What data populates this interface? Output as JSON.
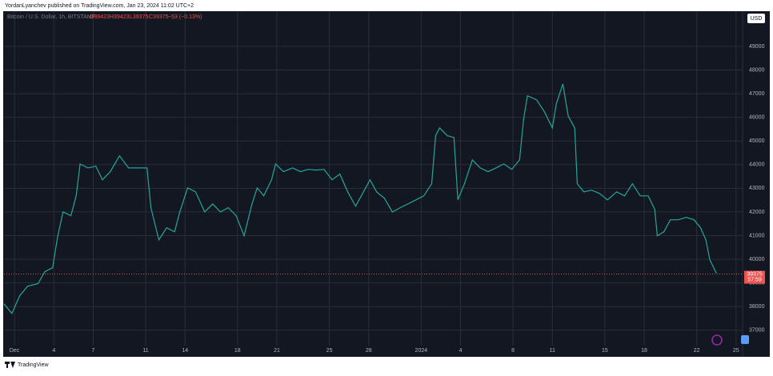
{
  "header": {
    "publisher": "YordanLyanchev published on TradingView.com, Jan 23, 2024 11:02 UTC+2"
  },
  "footer": {
    "brand": "TradingView"
  },
  "chart_data": {
    "type": "line",
    "legend": {
      "symbol": "Bitcoin / U.S. Dollar, 1h, BITSTAMP",
      "open": "O39423",
      "high": "H39423",
      "low": "L39375",
      "close": "C39375",
      "change": "−53 (−0.13%)"
    },
    "currency": "USD",
    "last_price": 39375,
    "countdown": "57:59",
    "color": "#26a69a",
    "last_color": "#ef5350",
    "grid": true,
    "x": [
      -0.8,
      -0.2,
      0.4,
      1.0,
      1.8,
      2.3,
      2.9,
      3.3,
      3.7,
      4.3,
      4.7,
      5.0,
      5.6,
      6.2,
      6.7,
      7.3,
      8.0,
      8.7,
      9.3,
      10.1,
      10.4,
      11.0,
      11.6,
      12.2,
      12.6,
      13.2,
      13.8,
      14.5,
      15.1,
      15.7,
      16.3,
      16.9,
      17.5,
      18.1,
      18.5,
      19.0,
      19.6,
      19.9,
      20.5,
      21.2,
      21.8,
      22.4,
      23.0,
      23.6,
      24.2,
      24.8,
      25.4,
      26.0,
      26.6,
      27.1,
      27.6,
      28.2,
      28.8,
      29.4,
      30.0,
      30.6,
      31.2,
      31.8,
      32.1,
      32.4,
      33.0,
      33.5,
      33.8,
      34.3,
      34.9,
      35.5,
      36.1,
      36.7,
      37.3,
      37.9,
      38.5,
      38.8,
      39.1,
      39.8,
      40.4,
      41.0,
      41.3,
      41.8,
      42.2,
      42.7,
      42.9,
      43.4,
      44.0,
      44.6,
      45.2,
      45.9,
      46.5,
      47.1,
      47.7,
      48.3,
      48.8,
      49.0,
      49.5,
      50.0,
      50.6,
      51.2,
      51.8,
      52.3,
      52.7,
      53.0,
      53.5
    ],
    "values": [
      38120,
      37710,
      38460,
      38860,
      38970,
      39470,
      39640,
      40990,
      42000,
      41840,
      42680,
      44030,
      43860,
      43930,
      43360,
      43700,
      44370,
      43860,
      43860,
      43860,
      42180,
      40820,
      41330,
      41160,
      42000,
      43020,
      42850,
      42000,
      42340,
      42000,
      42180,
      41840,
      40990,
      42340,
      43020,
      42680,
      43360,
      44030,
      43700,
      43860,
      43700,
      43800,
      43770,
      43800,
      43360,
      43600,
      42850,
      42240,
      42850,
      43360,
      42850,
      42580,
      42000,
      42180,
      42340,
      42510,
      42680,
      43190,
      45220,
      45550,
      45220,
      45150,
      42510,
      43190,
      44200,
      43860,
      43700,
      43860,
      44030,
      43800,
      44200,
      45890,
      46910,
      46740,
      46230,
      45550,
      46570,
      47410,
      46060,
      45550,
      43190,
      42850,
      42920,
      42780,
      42510,
      42850,
      42680,
      43190,
      42680,
      42680,
      42110,
      40990,
      41160,
      41670,
      41670,
      41770,
      41670,
      41330,
      40820,
      39980,
      39410
    ],
    "xlim": [
      -0.8,
      55.5
    ],
    "xticks": [
      {
        "value": 0,
        "label": "Dec"
      },
      {
        "value": 3,
        "label": "4"
      },
      {
        "value": 6,
        "label": "7"
      },
      {
        "value": 10,
        "label": "11"
      },
      {
        "value": 13,
        "label": "14"
      },
      {
        "value": 17,
        "label": "18"
      },
      {
        "value": 20,
        "label": "21"
      },
      {
        "value": 24,
        "label": "25"
      },
      {
        "value": 27,
        "label": "28"
      },
      {
        "value": 31,
        "label": "2024"
      },
      {
        "value": 34,
        "label": "4"
      },
      {
        "value": 38,
        "label": "8"
      },
      {
        "value": 41,
        "label": "11"
      },
      {
        "value": 45,
        "label": "15"
      },
      {
        "value": 48,
        "label": "18"
      },
      {
        "value": 52,
        "label": "22"
      },
      {
        "value": 55,
        "label": "25"
      }
    ],
    "ylim": [
      36350,
      50350
    ],
    "yticks": [
      37000,
      38000,
      39000,
      40000,
      41000,
      42000,
      43000,
      44000,
      45000,
      46000,
      47000,
      48000,
      49000
    ]
  }
}
